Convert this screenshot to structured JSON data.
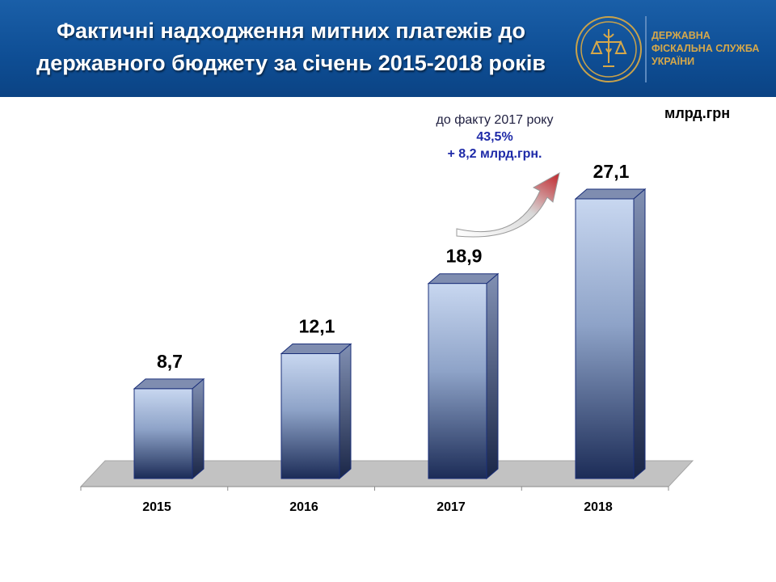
{
  "header": {
    "title_line1": "Фактичні надходження митних платежів до",
    "title_line2": "державного бюджету за січень 2015-2018 років",
    "org_line1": "ДЕРЖАВНА",
    "org_line2": "ФІСКАЛЬНА СЛУЖБА",
    "org_line3": "УКРАЇНИ",
    "logo": "trident-scales-emblem"
  },
  "unit_label": "млрд.грн",
  "note": {
    "line1": "до факту 2017 року",
    "line2": "43,5%",
    "line3": "+ 8,2 млрд.грн."
  },
  "colors": {
    "header": "#0f4f96",
    "bar_top": "#c8d7f0",
    "bar_bottom": "#1c2c57",
    "floor": "#c0c0c0",
    "accent_text": "#1e2aa8",
    "org_text": "#d6a84a"
  },
  "chart_data": {
    "type": "bar",
    "categories": [
      "2015",
      "2016",
      "2017",
      "2018"
    ],
    "values": [
      8.7,
      12.1,
      18.9,
      27.1
    ],
    "value_labels": [
      "8,7",
      "12,1",
      "18,9",
      "27,1"
    ],
    "title": "",
    "xlabel": "",
    "ylabel": "",
    "ylim": [
      0,
      30
    ],
    "grid": false,
    "legend": "none"
  }
}
